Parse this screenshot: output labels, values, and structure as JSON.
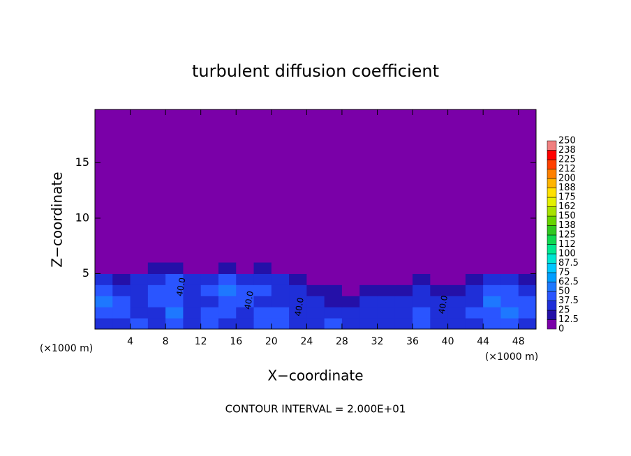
{
  "chart_data": {
    "type": "contour",
    "title": "turbulent diffusion coefficient",
    "xlabel": "X−coordinate",
    "ylabel": "Z−coordinate",
    "unit_label": "(×1000 m)",
    "footer": "CONTOUR INTERVAL = 2.000E+01",
    "xlim": [
      0,
      50
    ],
    "ylim": [
      0,
      19.8
    ],
    "xticks": [
      4,
      8,
      12,
      16,
      20,
      24,
      28,
      32,
      36,
      40,
      44,
      48
    ],
    "yticks": [
      5,
      10,
      15
    ],
    "levels": [
      0,
      12.5,
      25,
      37.5,
      50,
      62.5,
      75,
      87.5,
      100,
      112,
      125,
      138,
      150,
      162,
      175,
      188,
      200,
      212,
      225,
      238,
      250
    ],
    "colors": [
      "#7a00a8",
      "#2410a8",
      "#1f2fd8",
      "#2a55ff",
      "#1e78ff",
      "#009eff",
      "#00c8ff",
      "#00e6d2",
      "#00e890",
      "#10d850",
      "#30c820",
      "#68d400",
      "#a8e200",
      "#e4f000",
      "#ffe000",
      "#ffb400",
      "#ff8000",
      "#ff4000",
      "#ff0000",
      "#f08080"
    ],
    "x": [
      1,
      3,
      5,
      7,
      9,
      11,
      13,
      15,
      17,
      19,
      21,
      23,
      25,
      27,
      29,
      31,
      33,
      35,
      37,
      39,
      41,
      43,
      45,
      47,
      49
    ],
    "y": [
      0.5,
      1.5,
      2.5,
      3.5,
      4.5,
      5.5
    ],
    "z": [
      [
        30,
        35,
        40,
        30,
        45,
        25,
        40,
        30,
        35,
        45,
        40,
        30,
        35,
        40,
        30,
        25,
        30,
        35,
        40,
        30,
        35,
        30,
        40,
        45,
        35
      ],
      [
        40,
        45,
        30,
        35,
        50,
        30,
        45,
        40,
        30,
        40,
        45,
        35,
        30,
        35,
        25,
        30,
        35,
        30,
        45,
        35,
        30,
        40,
        45,
        50,
        40
      ],
      [
        50,
        40,
        35,
        45,
        40,
        25,
        35,
        45,
        40,
        35,
        30,
        25,
        30,
        20,
        20,
        25,
        30,
        25,
        35,
        30,
        25,
        35,
        50,
        45,
        40
      ],
      [
        45,
        35,
        30,
        40,
        45,
        30,
        40,
        50,
        45,
        40,
        35,
        30,
        20,
        15,
        10,
        15,
        20,
        15,
        25,
        20,
        15,
        30,
        45,
        40,
        35
      ],
      [
        30,
        20,
        25,
        35,
        40,
        25,
        30,
        40,
        30,
        35,
        30,
        20,
        10,
        5,
        5,
        8,
        5,
        10,
        15,
        10,
        10,
        20,
        30,
        25,
        20
      ],
      [
        10,
        5,
        8,
        15,
        20,
        10,
        10,
        15,
        10,
        15,
        10,
        5,
        3,
        2,
        2,
        2,
        2,
        3,
        5,
        3,
        5,
        8,
        10,
        8,
        5
      ]
    ],
    "annotations": [
      {
        "text": "40.0",
        "x": 9.8,
        "y": 3.8
      },
      {
        "text": "40.0",
        "x": 17.5,
        "y": 2.6
      },
      {
        "text": "40.0",
        "x": 23.2,
        "y": 2.0
      },
      {
        "text": "40.0",
        "x": 39.5,
        "y": 2.2
      }
    ]
  }
}
